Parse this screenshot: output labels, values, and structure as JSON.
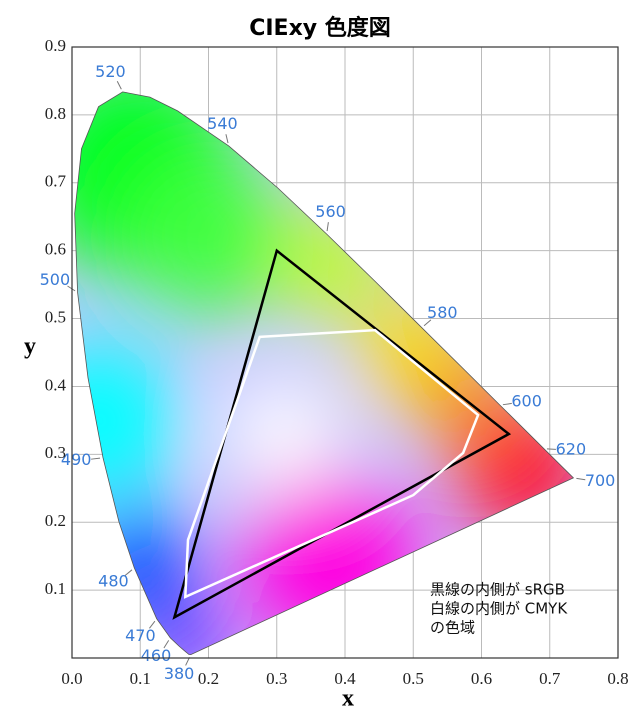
{
  "chart_data": {
    "type": "chromaticity",
    "title": "CIExy 色度図",
    "x_label": "x",
    "y_label": "y",
    "xlim": [
      0,
      0.8
    ],
    "ylim": [
      0,
      0.9
    ],
    "xticks": [
      {
        "value": 0,
        "label": "0.0"
      },
      0.1,
      0.2,
      0.3,
      0.4,
      0.5,
      0.6,
      0.7,
      0.8
    ],
    "yticks": [
      0.1,
      0.2,
      0.3,
      0.4,
      0.5,
      0.6,
      0.7,
      0.8,
      0.9
    ],
    "grid": true,
    "locus": {
      "label_color": "#3a7bd5",
      "categories": [
        "380",
        null,
        null,
        null,
        "460",
        "470",
        "480",
        null,
        "490",
        null,
        "500",
        null,
        null,
        null,
        "520",
        null,
        null,
        "540",
        null,
        "560",
        null,
        "580",
        null,
        "600",
        null,
        "620",
        null,
        "700"
      ],
      "x": [
        0.1741,
        0.1714,
        0.1644,
        0.1566,
        0.144,
        0.1241,
        0.0913,
        0.0687,
        0.0454,
        0.0235,
        0.0082,
        0.0039,
        0.0139,
        0.0389,
        0.0743,
        0.1142,
        0.1547,
        0.2296,
        0.3016,
        0.3731,
        0.4441,
        0.5125,
        0.5752,
        0.627,
        0.6658,
        0.6915,
        0.719,
        0.7347
      ],
      "y": [
        0.005,
        0.0051,
        0.0109,
        0.0177,
        0.0297,
        0.0578,
        0.1327,
        0.2007,
        0.295,
        0.4127,
        0.5384,
        0.6548,
        0.7502,
        0.812,
        0.8338,
        0.8262,
        0.8059,
        0.7543,
        0.6923,
        0.6245,
        0.5547,
        0.4866,
        0.4242,
        0.3725,
        0.334,
        0.3083,
        0.2809,
        0.2653
      ]
    },
    "series": [
      {
        "color": "#000000",
        "x": [
          0.64,
          0.3,
          0.15
        ],
        "y": [
          0.33,
          0.6,
          0.06
        ]
      },
      {
        "color": "#ffffff",
        "x": [
          0.275,
          0.444,
          0.595,
          0.573,
          0.5,
          0.166,
          0.17
        ],
        "y": [
          0.473,
          0.483,
          0.358,
          0.302,
          0.24,
          0.09,
          0.174
        ]
      }
    ],
    "annotation": [
      "黒線の内側が sRGB",
      "白線の内側が CMYK",
      "の色域"
    ]
  }
}
